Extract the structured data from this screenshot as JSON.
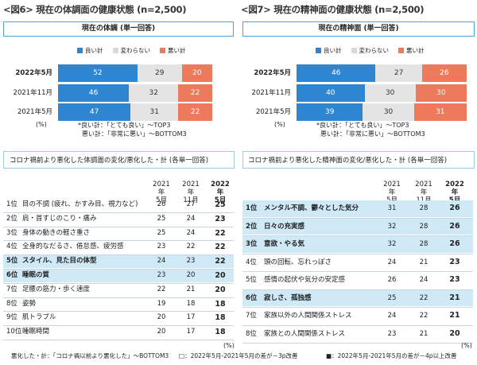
{
  "fig6": {
    "title": "<図6> 現在の体調面の健康状態 (n=2,500)",
    "subtitle": "現在の体調 (単一回答)"
  },
  "fig7": {
    "title": "<図7> 現在の精神面の健康状態 (n=2,500)",
    "subtitle": "現在の精神面 (単一回答)"
  },
  "legend": [
    "良い計",
    "変わらない",
    "悪い計"
  ],
  "colors": {
    "good": "#2e86d1",
    "same": "#e4e4e4",
    "bad": "#ee7a5c",
    "highlight": "#cfe9f7",
    "border": "#4da3d8"
  },
  "pct_unit": "(%)",
  "notes": [
    "*良い計：「とても良い」～TOP3",
    "悪い計：「非常に悪い」～BOTTOM3"
  ],
  "section_left": "コロナ禍前より悪化した体調面の変化/悪化した・計 (各単一回答)",
  "section_right": "コロナ禍前より悪化した精神面の変化/悪化した・計 (各単一回答)",
  "col_headers": [
    {
      "l1": "2021年",
      "l2": "5月"
    },
    {
      "l1": "2021年",
      "l2": "11月"
    },
    {
      "l1": "2022年",
      "l2": "5月"
    }
  ],
  "footer": {
    "left": "悪化した・計：「コロナ禍以前より悪化した」～BOTTOM3",
    "mid": "□：2022年5月-2021年5月の差が－3p改善",
    "right": "■：2022年5月-2021年5月の差が－4p以上改善"
  },
  "chart_data": [
    {
      "type": "bar",
      "title": "<図6> 現在の体調面の健康状態 (n=2,500)",
      "subtitle": "現在の体調 (単一回答)",
      "categories": [
        "2022年5月",
        "2021年11月",
        "2021年5月"
      ],
      "series": [
        {
          "name": "良い計",
          "values": [
            52,
            46,
            47
          ]
        },
        {
          "name": "変わらない",
          "values": [
            29,
            32,
            31
          ]
        },
        {
          "name": "悪い計",
          "values": [
            20,
            22,
            22
          ]
        }
      ],
      "stacked": true,
      "orientation": "horizontal",
      "xlim": [
        0,
        100
      ],
      "legend": "top"
    },
    {
      "type": "bar",
      "title": "<図7> 現在の精神面の健康状態 (n=2,500)",
      "subtitle": "現在の精神面 (単一回答)",
      "categories": [
        "2022年5月",
        "2021年11月",
        "2021年5月"
      ],
      "series": [
        {
          "name": "良い計",
          "values": [
            46,
            40,
            39
          ]
        },
        {
          "name": "変わらない",
          "values": [
            27,
            30,
            30
          ]
        },
        {
          "name": "悪い計",
          "values": [
            26,
            30,
            31
          ]
        }
      ],
      "stacked": true,
      "orientation": "horizontal",
      "xlim": [
        0,
        100
      ],
      "legend": "top"
    },
    {
      "type": "table",
      "title": "コロナ禍前より悪化した体調面の変化/悪化した・計 (各単一回答)",
      "columns": [
        "2021年5月",
        "2021年11月",
        "2022年5月"
      ],
      "rows": [
        {
          "rank": "1位",
          "name": "目の不調 (疲れ、かすみ目、視力など)",
          "values": [
            26,
            27,
            25
          ],
          "highlight": false
        },
        {
          "rank": "2位",
          "name": "肩・首すじのこり・痛み",
          "values": [
            25,
            24,
            23
          ],
          "highlight": false
        },
        {
          "rank": "3位",
          "name": "身体の動きの軽さ重さ",
          "values": [
            25,
            24,
            22
          ],
          "highlight": false
        },
        {
          "rank": "4位",
          "name": "全身的なだるさ、倦怠感、疲労感",
          "values": [
            23,
            22,
            22
          ],
          "highlight": false
        },
        {
          "rank": "5位",
          "name": "スタイル、見た目の体型",
          "values": [
            24,
            23,
            22
          ],
          "highlight": true
        },
        {
          "rank": "6位",
          "name": "睡眠の質",
          "values": [
            23,
            20,
            20
          ],
          "highlight": true
        },
        {
          "rank": "7位",
          "name": "足腰の筋力・歩く速度",
          "values": [
            22,
            21,
            20
          ],
          "highlight": false
        },
        {
          "rank": "8位",
          "name": "姿勢",
          "values": [
            19,
            18,
            18
          ],
          "highlight": false
        },
        {
          "rank": "9位",
          "name": "肌トラブル",
          "values": [
            20,
            17,
            18
          ],
          "highlight": false
        },
        {
          "rank": "10位",
          "name": "睡眠時間",
          "values": [
            20,
            17,
            18
          ],
          "highlight": false
        }
      ]
    },
    {
      "type": "table",
      "title": "コロナ禍前より悪化した精神面の変化/悪化した・計 (各単一回答)",
      "columns": [
        "2021年5月",
        "2021年11月",
        "2022年5月"
      ],
      "rows": [
        {
          "rank": "1位",
          "name": "メンタル不調、鬱々とした気分",
          "values": [
            31,
            28,
            26
          ],
          "highlight": true
        },
        {
          "rank": "2位",
          "name": "日々の充実感",
          "values": [
            32,
            28,
            26
          ],
          "highlight": true
        },
        {
          "rank": "3位",
          "name": "意欲・やる気",
          "values": [
            32,
            28,
            26
          ],
          "highlight": true
        },
        {
          "rank": "4位",
          "name": "頭の回転、忘れっぽさ",
          "values": [
            24,
            21,
            23
          ],
          "highlight": false
        },
        {
          "rank": "5位",
          "name": "感情の起伏や気分の安定感",
          "values": [
            26,
            24,
            23
          ],
          "highlight": false
        },
        {
          "rank": "6位",
          "name": "寂しさ、孤独感",
          "values": [
            25,
            22,
            21
          ],
          "highlight": true
        },
        {
          "rank": "7位",
          "name": "家族以外の人間関係ストレス",
          "values": [
            24,
            22,
            21
          ],
          "highlight": false
        },
        {
          "rank": "8位",
          "name": "家族との人間関係ストレス",
          "values": [
            23,
            21,
            20
          ],
          "highlight": false
        }
      ]
    }
  ]
}
